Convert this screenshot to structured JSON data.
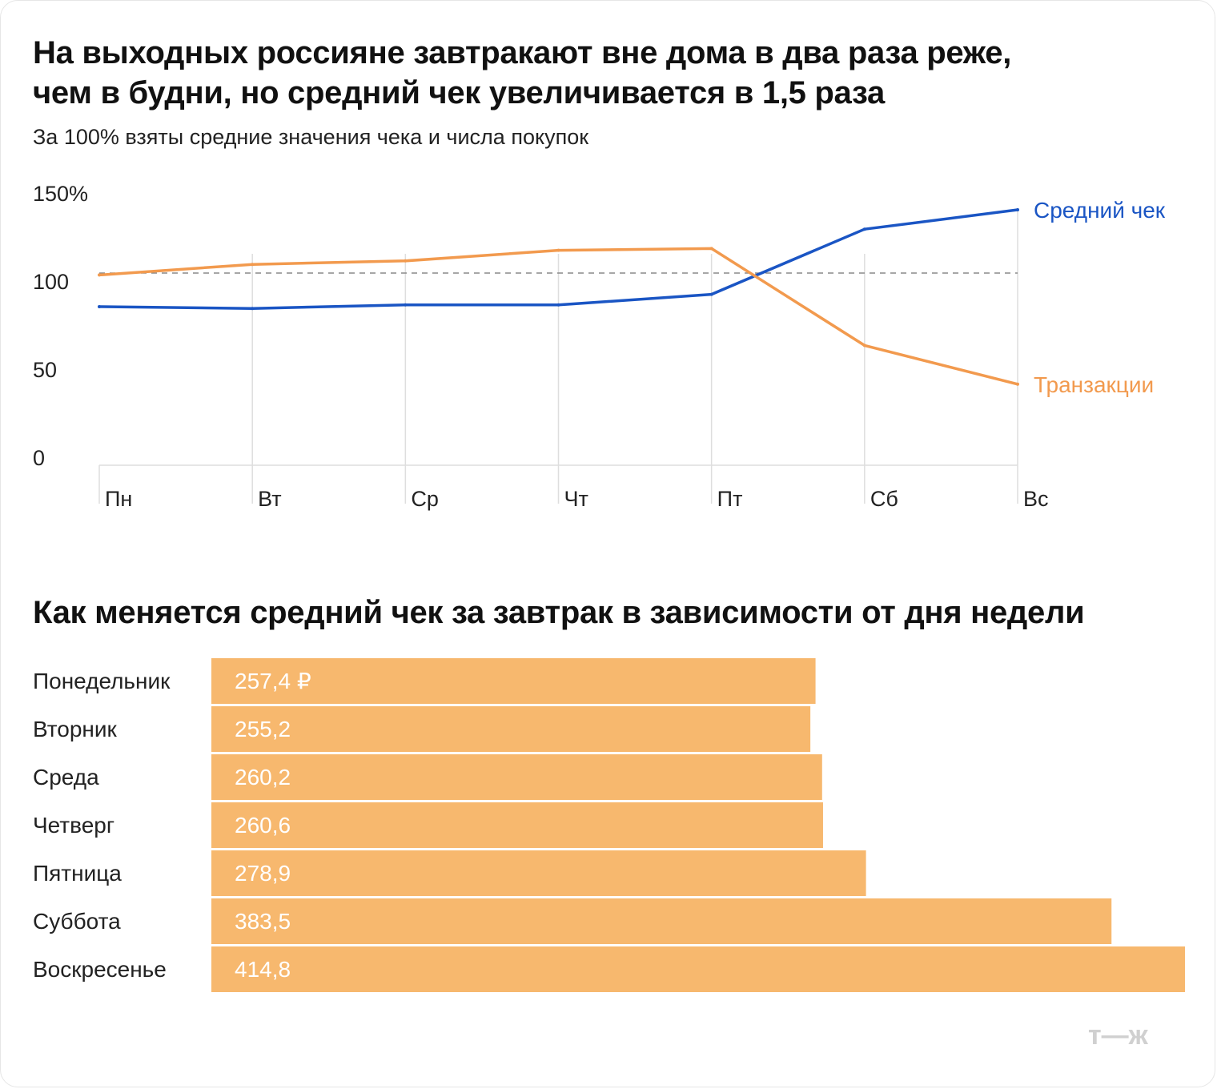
{
  "colors": {
    "avg_check": "#1a55c4",
    "transactions": "#f29a4e",
    "bars": "#f7b86e",
    "grid": "#dedede",
    "baseline": "#8a8a8a",
    "logo": "#d0d0d0"
  },
  "logo_text": "т—ж",
  "chart_data": [
    {
      "type": "line",
      "title_lines": [
        "На выходных россияне завтракают вне дома в два раза реже,",
        "чем в будни, но средний чек увеличивается в 1,5 раза"
      ],
      "subtitle": "За 100% взяты средние значения чека и числа покупок",
      "categories": [
        "Пн",
        "Вт",
        "Ср",
        "Чт",
        "Пт",
        "Сб",
        "Вс"
      ],
      "y_ticks": [
        "150%",
        "100",
        "50",
        "0"
      ],
      "y_tick_values": [
        150,
        100,
        50,
        0
      ],
      "ylim": [
        0,
        150
      ],
      "grid": "vertical",
      "reference_line": 100,
      "series": [
        {
          "name": "Средний чек",
          "color": "#1a55c4",
          "values": [
            90,
            89,
            91,
            91,
            97,
            134,
            145
          ]
        },
        {
          "name": "Транзакции",
          "color": "#f29a4e",
          "values": [
            108,
            114,
            116,
            122,
            123,
            68,
            46
          ]
        }
      ]
    },
    {
      "type": "bar",
      "orientation": "horizontal",
      "title": "Как меняется средний чек за завтрак в зависимости от дня недели",
      "categories": [
        "Понедельник",
        "Вторник",
        "Среда",
        "Четверг",
        "Пятница",
        "Суббота",
        "Воскресенье"
      ],
      "values": [
        257.4,
        255.2,
        260.2,
        260.6,
        278.9,
        383.5,
        414.8
      ],
      "value_labels": [
        "257,4 ₽",
        "255,2",
        "260,2",
        "260,6",
        "278,9",
        "383,5",
        "414,8"
      ],
      "xlim": [
        0,
        414.8
      ]
    }
  ]
}
